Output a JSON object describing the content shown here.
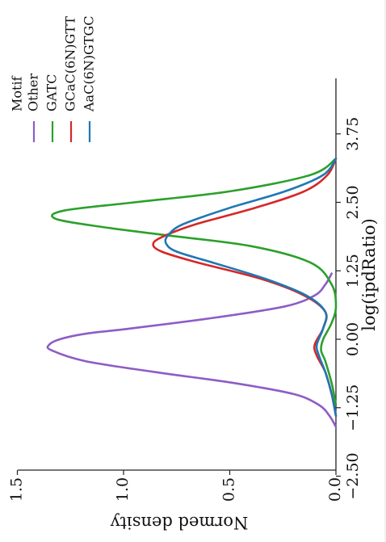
{
  "chart_data": {
    "type": "line",
    "orientation": "rotated-90-clockwise",
    "xlabel": "log(ipdRatio)",
    "ylabel": "Normed density",
    "xlim": [
      -3.0,
      3.9
    ],
    "ylim": [
      0,
      1.5
    ],
    "x_ticks": [
      -2.5,
      -1.25,
      0.0,
      1.25,
      2.5,
      3.75
    ],
    "x_tick_labels": [
      "−2.50",
      "−1.25",
      "0.00",
      "1.25",
      "2.50",
      "3.75"
    ],
    "y_ticks": [
      0.0,
      0.5,
      1.0,
      1.5
    ],
    "y_tick_labels": [
      "0.0",
      "0.5",
      "1.0",
      "1.5"
    ],
    "grid": false,
    "legend": {
      "title": "Motif",
      "position": "top-right"
    },
    "series": [
      {
        "name": "Other",
        "color": "#8e5cc6",
        "x": [
          -1.6,
          -1.4,
          -1.2,
          -1.0,
          -0.8,
          -0.6,
          -0.4,
          -0.2,
          -0.1,
          0.0,
          0.1,
          0.2,
          0.4,
          0.6,
          0.8,
          1.0,
          1.2
        ],
        "y": [
          0.0,
          0.03,
          0.08,
          0.2,
          0.48,
          0.85,
          1.18,
          1.34,
          1.35,
          1.3,
          1.18,
          0.96,
          0.56,
          0.24,
          0.1,
          0.05,
          0.02
        ]
      },
      {
        "name": "GATC",
        "color": "#2ca02c",
        "x": [
          -1.2,
          -0.8,
          -0.4,
          -0.2,
          0.0,
          0.3,
          0.6,
          1.0,
          1.4,
          1.7,
          1.9,
          2.05,
          2.2,
          2.35,
          2.5,
          2.7,
          3.0,
          3.3
        ],
        "y": [
          0.0,
          0.02,
          0.05,
          0.07,
          0.06,
          0.02,
          0.0,
          0.02,
          0.12,
          0.4,
          0.8,
          1.1,
          1.32,
          1.28,
          0.95,
          0.5,
          0.12,
          0.0
        ]
      },
      {
        "name": "GCaC(6N)GTT",
        "color": "#d62728",
        "x": [
          -1.4,
          -1.0,
          -0.6,
          -0.3,
          -0.1,
          0.2,
          0.5,
          0.8,
          1.1,
          1.4,
          1.6,
          1.75,
          1.9,
          2.1,
          2.4,
          2.7,
          3.0,
          3.3
        ],
        "y": [
          0.0,
          0.02,
          0.05,
          0.09,
          0.1,
          0.06,
          0.05,
          0.15,
          0.35,
          0.65,
          0.82,
          0.86,
          0.8,
          0.66,
          0.38,
          0.15,
          0.04,
          0.0
        ]
      },
      {
        "name": "AaC(6N)GTGC",
        "color": "#1f77b4",
        "x": [
          -1.4,
          -1.0,
          -0.6,
          -0.3,
          -0.1,
          0.2,
          0.5,
          0.8,
          1.1,
          1.4,
          1.6,
          1.75,
          1.9,
          2.1,
          2.4,
          2.7,
          3.0,
          3.3
        ],
        "y": [
          0.0,
          0.02,
          0.05,
          0.08,
          0.09,
          0.06,
          0.05,
          0.14,
          0.33,
          0.58,
          0.75,
          0.8,
          0.79,
          0.72,
          0.5,
          0.24,
          0.06,
          0.0
        ]
      }
    ]
  }
}
